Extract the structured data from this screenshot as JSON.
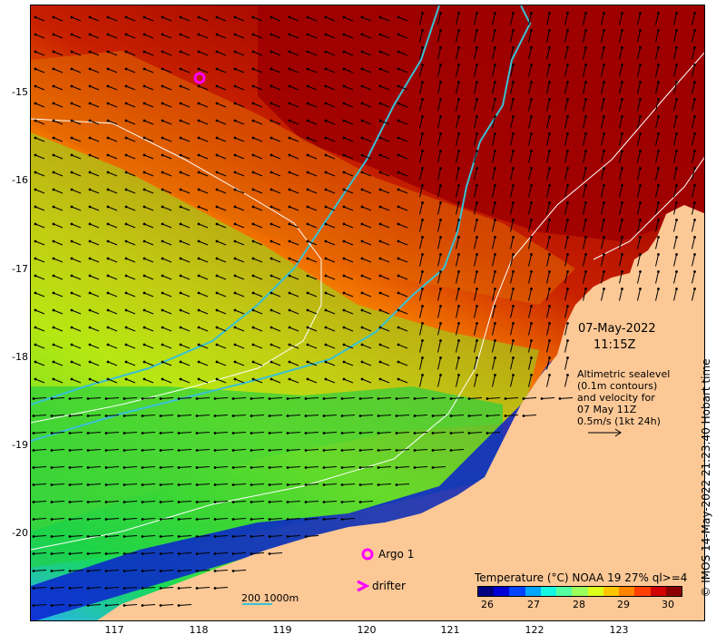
{
  "map": {
    "y_ticks": [
      "-15",
      "-16",
      "-17",
      "-18",
      "-19",
      "-20"
    ],
    "x_ticks": [
      "117",
      "118",
      "119",
      "120",
      "121",
      "122",
      "123"
    ],
    "datetime_line1": "07-May-2022",
    "datetime_line2": "11:15Z",
    "note_lines": [
      "Altimetric sealevel",
      "(0.1m contours)",
      "and velocity for",
      "07 May 11Z",
      "0.5m/s (1kt 24h)"
    ],
    "legend_argo": "Argo 1",
    "legend_drifter": "drifter",
    "bathymetry_scale": "200  1000m",
    "colorbar_title": "Temperature (°C) NOAA 19 27% ql>=4",
    "colorbar_ticks": [
      "26",
      "27",
      "28",
      "29",
      "30"
    ],
    "colorbar_colors": [
      "#00007f",
      "#0000d6",
      "#0044ff",
      "#00a6ff",
      "#17f6e0",
      "#55ff9f",
      "#9aff5b",
      "#ddff1a",
      "#ffc600",
      "#ff8500",
      "#ff4000",
      "#d20000",
      "#8a0000"
    ],
    "credit": "© IMOS 14-May-2022 21:23:40 Hobart time",
    "colors": {
      "land": "#fcc896",
      "bathy_line": "#39c1d4",
      "argo": "#ff00ff",
      "contour": "#ffffff"
    }
  }
}
